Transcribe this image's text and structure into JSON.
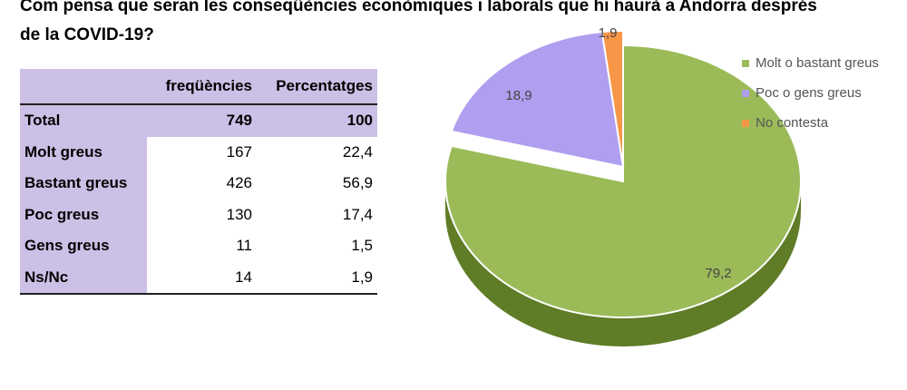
{
  "title": "Com pensa que seran les conseqüències econòmiques i laborals que hi haurà a Andorra després de la COVID-19?",
  "table": {
    "headers": [
      "",
      "freqüències",
      "Percentatges"
    ],
    "rows": [
      {
        "label": "Total",
        "freq": "749",
        "pct": "100"
      },
      {
        "label": "Molt greus",
        "freq": "167",
        "pct": "22,4"
      },
      {
        "label": "Bastant greus",
        "freq": "426",
        "pct": "56,9"
      },
      {
        "label": "Poc greus",
        "freq": "130",
        "pct": "17,4"
      },
      {
        "label": "Gens greus",
        "freq": "11",
        "pct": "1,5"
      },
      {
        "label": "Ns/Nc",
        "freq": "14",
        "pct": "1,9"
      }
    ]
  },
  "chart_data": {
    "type": "pie",
    "title": "",
    "categories": [
      "Molt o bastant greus",
      "Poc o gens greus",
      "No contesta"
    ],
    "values": [
      79.2,
      18.9,
      1.9
    ],
    "labels": [
      "79,2",
      "18,9",
      "1,9"
    ],
    "colors": [
      "#9bbb59",
      "#b09ef0",
      "#f79646"
    ],
    "shadow_colors": [
      "#5f7c26",
      "#7a66b8",
      "#c46a22"
    ],
    "legend_position": "right",
    "exploded_category": "Molt o bastant greus"
  }
}
